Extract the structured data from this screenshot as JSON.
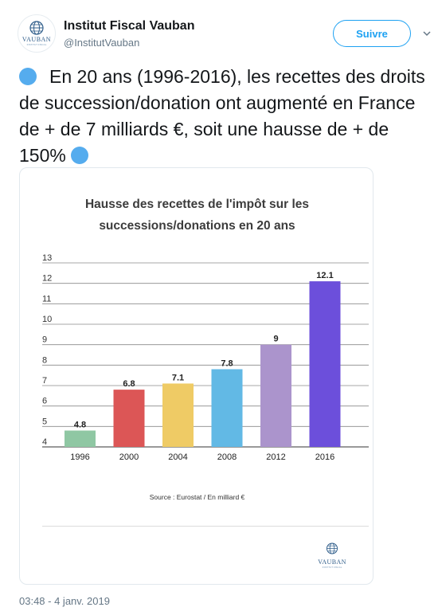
{
  "account": {
    "name": "Institut Fiscal Vauban",
    "handle": "@InstitutVauban",
    "avatar_brand": "VAUBAN",
    "avatar_sub": "INSTITUT FISCAL"
  },
  "follow_label": "Suivre",
  "tweet": {
    "text": "En 20 ans (1996-2016), les recettes des droits de succession/donation ont augmenté en France de + de 7 milliards €, soit une hausse de + de 150%"
  },
  "timestamp": "03:48 - 4 janv. 2019",
  "card": {
    "title_line1": "Hausse des recettes de l'impôt sur les",
    "title_line2": "successions/donations en 20 ans",
    "source": "Source : Eurostat / En milliard €",
    "logo_brand": "VAUBAN",
    "logo_sub": "INSTITUT FISCAL"
  },
  "colors": {
    "accent": "#1da1f2",
    "emoji_blue": "#55acee"
  },
  "chart_data": {
    "type": "bar",
    "title": "Hausse des recettes de l'impôt sur les successions/donations en 20 ans",
    "categories": [
      "1996",
      "2000",
      "2004",
      "2008",
      "2012",
      "2016"
    ],
    "values": [
      4.8,
      6.8,
      7.1,
      7.8,
      9,
      12.1
    ],
    "labels": [
      "4.8",
      "6.8",
      "7.1",
      "7.8",
      "9",
      "12.1"
    ],
    "colors": [
      "#8fc7a3",
      "#dc5656",
      "#efcb65",
      "#62b9e5",
      "#ab94cc",
      "#6c4fdb"
    ],
    "yticks": [
      4,
      5,
      6,
      7,
      8,
      9,
      10,
      11,
      12,
      13
    ],
    "ylim": [
      4,
      13
    ],
    "grid": true,
    "xlabel": "",
    "ylabel": ""
  }
}
